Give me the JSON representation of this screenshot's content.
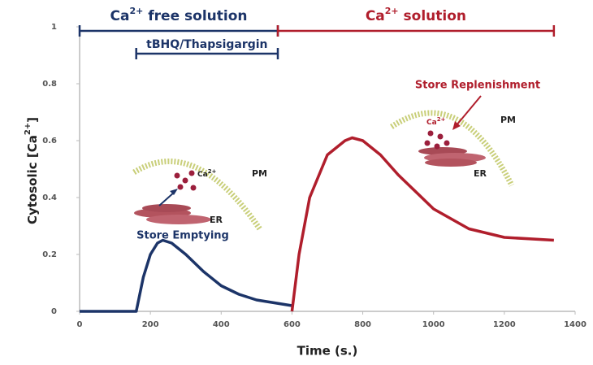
{
  "chart_data": {
    "type": "line",
    "x_label": "Time (s.)",
    "y_label": {
      "text": "Cytosolic [Ca",
      "sup": "2+",
      "rest": "]"
    },
    "xlim": [
      0,
      1400
    ],
    "xticks": [
      0,
      200,
      400,
      600,
      800,
      1000,
      1200,
      1400
    ],
    "ylim": [
      0,
      1
    ],
    "yticks": [
      0,
      0.2,
      0.4,
      0.6,
      0.8,
      1
    ],
    "series": [
      {
        "color": "#1c3468",
        "x": [
          0,
          160,
          180,
          200,
          220,
          235,
          260,
          300,
          350,
          400,
          450,
          500,
          550,
          600
        ],
        "values": [
          0,
          0,
          0.12,
          0.2,
          0.24,
          0.25,
          0.24,
          0.2,
          0.14,
          0.09,
          0.06,
          0.04,
          0.03,
          0.02
        ]
      },
      {
        "color": "#b01e2c",
        "x": [
          600,
          620,
          650,
          700,
          750,
          770,
          800,
          850,
          900,
          1000,
          1100,
          1200,
          1340
        ],
        "values": [
          0,
          0.2,
          0.4,
          0.55,
          0.6,
          0.61,
          0.6,
          0.55,
          0.48,
          0.36,
          0.29,
          0.26,
          0.25
        ]
      }
    ],
    "spans": [
      {
        "text": "Ca",
        "sup": "2+",
        "rest": " free solution",
        "x": [
          0,
          560
        ],
        "color": "#1c3468"
      },
      {
        "text": "tBHQ/Thapsigargin",
        "x": [
          160,
          560
        ],
        "color": "#1c3468"
      },
      {
        "text": "Ca",
        "sup": "2+",
        "rest": " solution",
        "x": [
          560,
          1340
        ],
        "color": "#b01e2c"
      }
    ],
    "annotations": {
      "left_pm": "PM",
      "left_er": "ER",
      "left_ca": {
        "text": "Ca",
        "sup": "2+"
      },
      "left_caption": "Store Emptying",
      "right_pm": "PM",
      "right_er": "ER",
      "right_ca": {
        "text": "Ca",
        "sup": "2+"
      },
      "right_caption": "Store Replenishment"
    }
  }
}
